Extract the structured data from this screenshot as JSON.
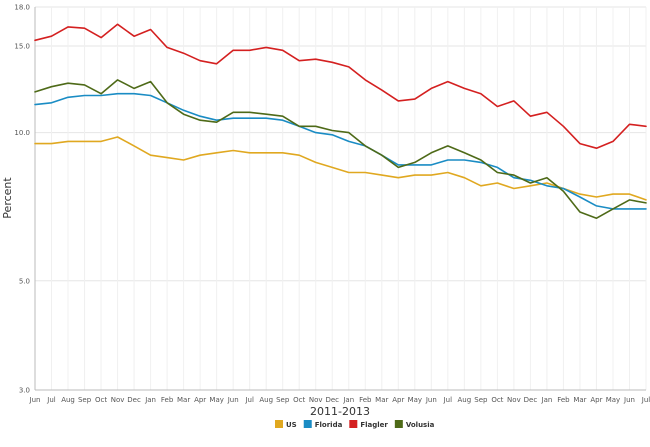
{
  "chart_data": {
    "type": "line",
    "title": "",
    "xlabel": "2011-2013",
    "ylabel": "Percent",
    "x": [
      "Jun",
      "Jul",
      "Aug",
      "Sep",
      "Oct",
      "Nov",
      "Dec",
      "Jan",
      "Feb",
      "Mar",
      "Apr",
      "May",
      "Jun",
      "Jul",
      "Aug",
      "Sep",
      "Oct",
      "Nov",
      "Dec",
      "Jan",
      "Feb",
      "Mar",
      "Apr",
      "May",
      "Jun",
      "Jul",
      "Aug",
      "Sep",
      "Oct",
      "Nov",
      "Dec",
      "Jan",
      "Feb",
      "Mar",
      "Apr",
      "May",
      "Jun",
      "Jul"
    ],
    "ylim": [
      3.0,
      18.0
    ],
    "yticks": [
      "3.0",
      "5.0",
      "10.0",
      "15.0",
      "18.0"
    ],
    "grid": true,
    "legend_position": "bottom",
    "series": [
      {
        "name": "US",
        "color": "#e0a820",
        "values": [
          9.5,
          9.5,
          9.6,
          9.6,
          9.6,
          9.8,
          9.4,
          9.0,
          8.9,
          8.8,
          9.0,
          9.1,
          9.2,
          9.1,
          9.1,
          9.1,
          9.0,
          8.7,
          8.5,
          8.3,
          8.3,
          8.2,
          8.1,
          8.2,
          8.2,
          8.3,
          8.1,
          7.8,
          7.9,
          7.7,
          7.8,
          7.9,
          7.7,
          7.5,
          7.4,
          7.5,
          7.5,
          7.3
        ]
      },
      {
        "name": "Florida",
        "color": "#1a8cc4",
        "values": [
          11.4,
          11.5,
          11.8,
          11.9,
          11.9,
          12.0,
          12.0,
          11.9,
          11.5,
          11.1,
          10.8,
          10.6,
          10.7,
          10.7,
          10.7,
          10.6,
          10.3,
          10.0,
          9.9,
          9.6,
          9.4,
          9.0,
          8.6,
          8.6,
          8.6,
          8.8,
          8.8,
          8.7,
          8.5,
          8.1,
          8.0,
          7.8,
          7.7,
          7.4,
          7.1,
          7.0,
          7.0,
          7.0
        ]
      },
      {
        "name": "Flagler",
        "color": "#d42020",
        "values": [
          15.4,
          15.7,
          16.4,
          16.3,
          15.6,
          16.6,
          15.7,
          16.2,
          14.9,
          14.5,
          14.0,
          13.8,
          14.7,
          14.7,
          14.9,
          14.7,
          14.0,
          14.1,
          13.9,
          13.6,
          12.8,
          12.2,
          11.6,
          11.7,
          12.3,
          12.7,
          12.3,
          12.0,
          11.3,
          11.6,
          10.8,
          11.0,
          10.3,
          9.5,
          9.3,
          9.6,
          10.4,
          10.3
        ]
      },
      {
        "name": "Volusia",
        "color": "#4e6a18",
        "values": [
          12.1,
          12.4,
          12.6,
          12.5,
          12.0,
          12.8,
          12.3,
          12.7,
          11.5,
          10.9,
          10.6,
          10.5,
          11.0,
          11.0,
          10.9,
          10.8,
          10.3,
          10.3,
          10.1,
          10.0,
          9.4,
          9.0,
          8.5,
          8.7,
          9.1,
          9.4,
          9.1,
          8.8,
          8.3,
          8.2,
          7.9,
          8.1,
          7.6,
          6.9,
          6.7,
          7.0,
          7.3,
          7.2
        ]
      }
    ]
  }
}
